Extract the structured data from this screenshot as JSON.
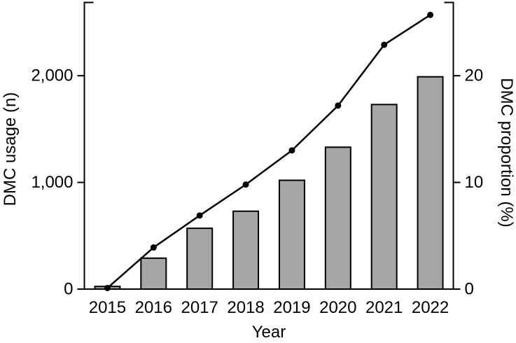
{
  "figure": {
    "background": "#ffffff"
  },
  "chart_data": {
    "type": "bar",
    "subtype": "bar+line dual axis",
    "categories": [
      "2015",
      "2016",
      "2017",
      "2018",
      "2019",
      "2020",
      "2021",
      "2022"
    ],
    "series": [
      {
        "name": "DMC usage (n)",
        "type": "bar",
        "axis": "left",
        "values": [
          25,
          290,
          570,
          730,
          1020,
          1330,
          1730,
          1990
        ]
      },
      {
        "name": "DMC proportion (%)",
        "type": "line",
        "axis": "right",
        "values": [
          0.1,
          3.9,
          6.9,
          9.8,
          13.0,
          17.2,
          22.9,
          25.7
        ]
      }
    ],
    "left_axis": {
      "title": "DMC usage (n)",
      "range": [
        0,
        2690
      ],
      "ticks": [
        {
          "value": 0,
          "label": "0"
        },
        {
          "value": 1000,
          "label": "1,000"
        },
        {
          "value": 2000,
          "label": "2,000"
        }
      ]
    },
    "right_axis": {
      "title": "DMC proportion (%)",
      "range": [
        0,
        26.9
      ],
      "ticks": [
        {
          "value": 0,
          "label": "0"
        },
        {
          "value": 10,
          "label": "10"
        },
        {
          "value": 20,
          "label": "20"
        }
      ]
    },
    "x_axis": {
      "title": "Year"
    },
    "legend": null,
    "grid": false,
    "colors": {
      "bar_fill": "#a6a6a6",
      "bar_border": "#000000",
      "line": "#000000",
      "marker": "#000000",
      "axis": "#000000",
      "text": "#000000",
      "background": "#ffffff"
    }
  }
}
